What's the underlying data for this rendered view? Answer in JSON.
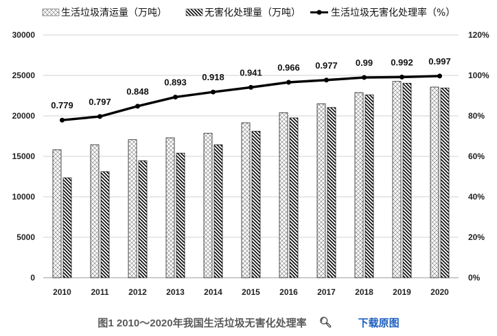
{
  "chart_data": {
    "type": "bar",
    "title": "",
    "categories": [
      "2010",
      "2011",
      "2012",
      "2013",
      "2014",
      "2015",
      "2016",
      "2017",
      "2018",
      "2019",
      "2020"
    ],
    "series": [
      {
        "name": "生活垃圾清运量（万吨）",
        "type": "bar",
        "axis": "left",
        "pattern": "crosshatch-light",
        "values": [
          15820,
          16440,
          17060,
          17290,
          17860,
          19150,
          20400,
          21500,
          22880,
          24260,
          23560
        ]
      },
      {
        "name": "无害化处理量（万吨）",
        "type": "bar",
        "axis": "left",
        "pattern": "diagonal-dark",
        "values": [
          12350,
          13110,
          14460,
          15400,
          16440,
          18110,
          19750,
          21040,
          22600,
          24040,
          23450
        ]
      },
      {
        "name": "生活垃圾无害化处理率（%）",
        "type": "line",
        "axis": "right",
        "color": "#000000",
        "values": [
          0.779,
          0.797,
          0.848,
          0.893,
          0.918,
          0.941,
          0.966,
          0.977,
          0.99,
          0.992,
          0.997
        ],
        "data_labels": [
          "0.779",
          "0.797",
          "0.848",
          "0.893",
          "0.918",
          "0.941",
          "0.966",
          "0.977",
          "0.99",
          "0.992",
          "0.997"
        ]
      }
    ],
    "y_left": {
      "range": [
        0,
        30000
      ],
      "ticks": [
        "0",
        "5000",
        "10000",
        "15000",
        "20000",
        "25000",
        "30000"
      ]
    },
    "y_right": {
      "range": [
        0,
        1.2
      ],
      "ticks": [
        "0%",
        "20%",
        "40%",
        "60%",
        "80%",
        "100%",
        "120%"
      ]
    },
    "grid": true,
    "legend": "top"
  },
  "caption": {
    "text": "图1 2010～2020年我国生活垃圾无害化处理率",
    "zoom_icon": "magnifier-icon",
    "download_label": "下载原图",
    "link_color": "#1f5fbf"
  }
}
